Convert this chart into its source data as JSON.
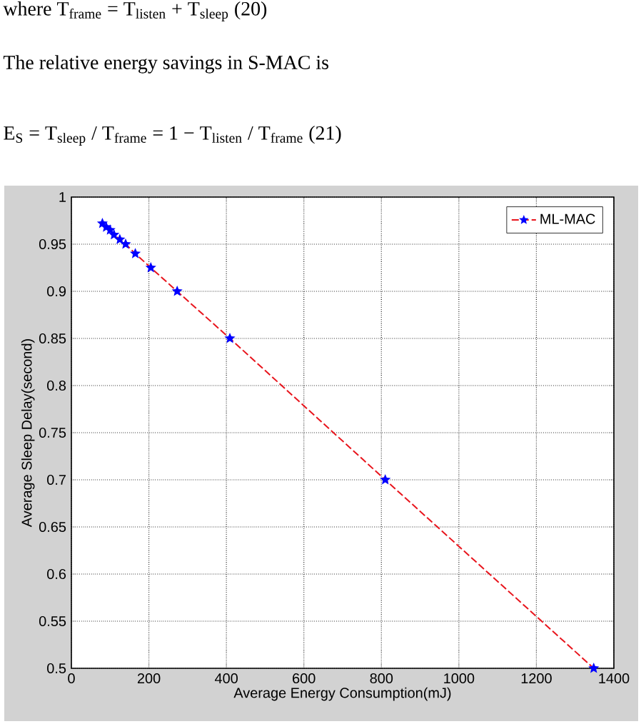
{
  "chart_data": {
    "type": "line",
    "xlabel": "Average Energy Consumption(mJ)",
    "ylabel": "Average Sleep Delay(second)",
    "annotations": [
      "where T$_{frame}$ = T$_{listen}$ + T$_{sleep}$ (20)",
      "The relative energy savings in S-MAC is",
      "E$_{S}$ = T$_{sleep}$ / T$_{frame}$ = 1 − T$_{listen}$ / T$_{frame}$ (21)"
    ],
    "x": [
      80,
      90,
      100,
      110,
      125,
      140,
      165,
      205,
      273,
      409,
      810,
      1348
    ],
    "series": [
      {
        "name": "ML-MAC",
        "color": "#e8141c",
        "values": [
          0.972,
          0.968,
          0.965,
          0.96,
          0.955,
          0.95,
          0.94,
          0.925,
          0.9,
          0.85,
          0.7,
          0.5
        ]
      }
    ],
    "xlim": [
      0,
      1400
    ],
    "ylim": [
      0.5,
      1
    ],
    "xticks": [
      0,
      200,
      400,
      600,
      800,
      1000,
      1200,
      1400
    ],
    "yticks": [
      0.5,
      0.55,
      0.6,
      0.65,
      0.7,
      0.75,
      0.8,
      0.85,
      0.9,
      0.95,
      1
    ],
    "grid": true,
    "legend": "top right",
    "marker": "star",
    "line_style": "dashed"
  }
}
